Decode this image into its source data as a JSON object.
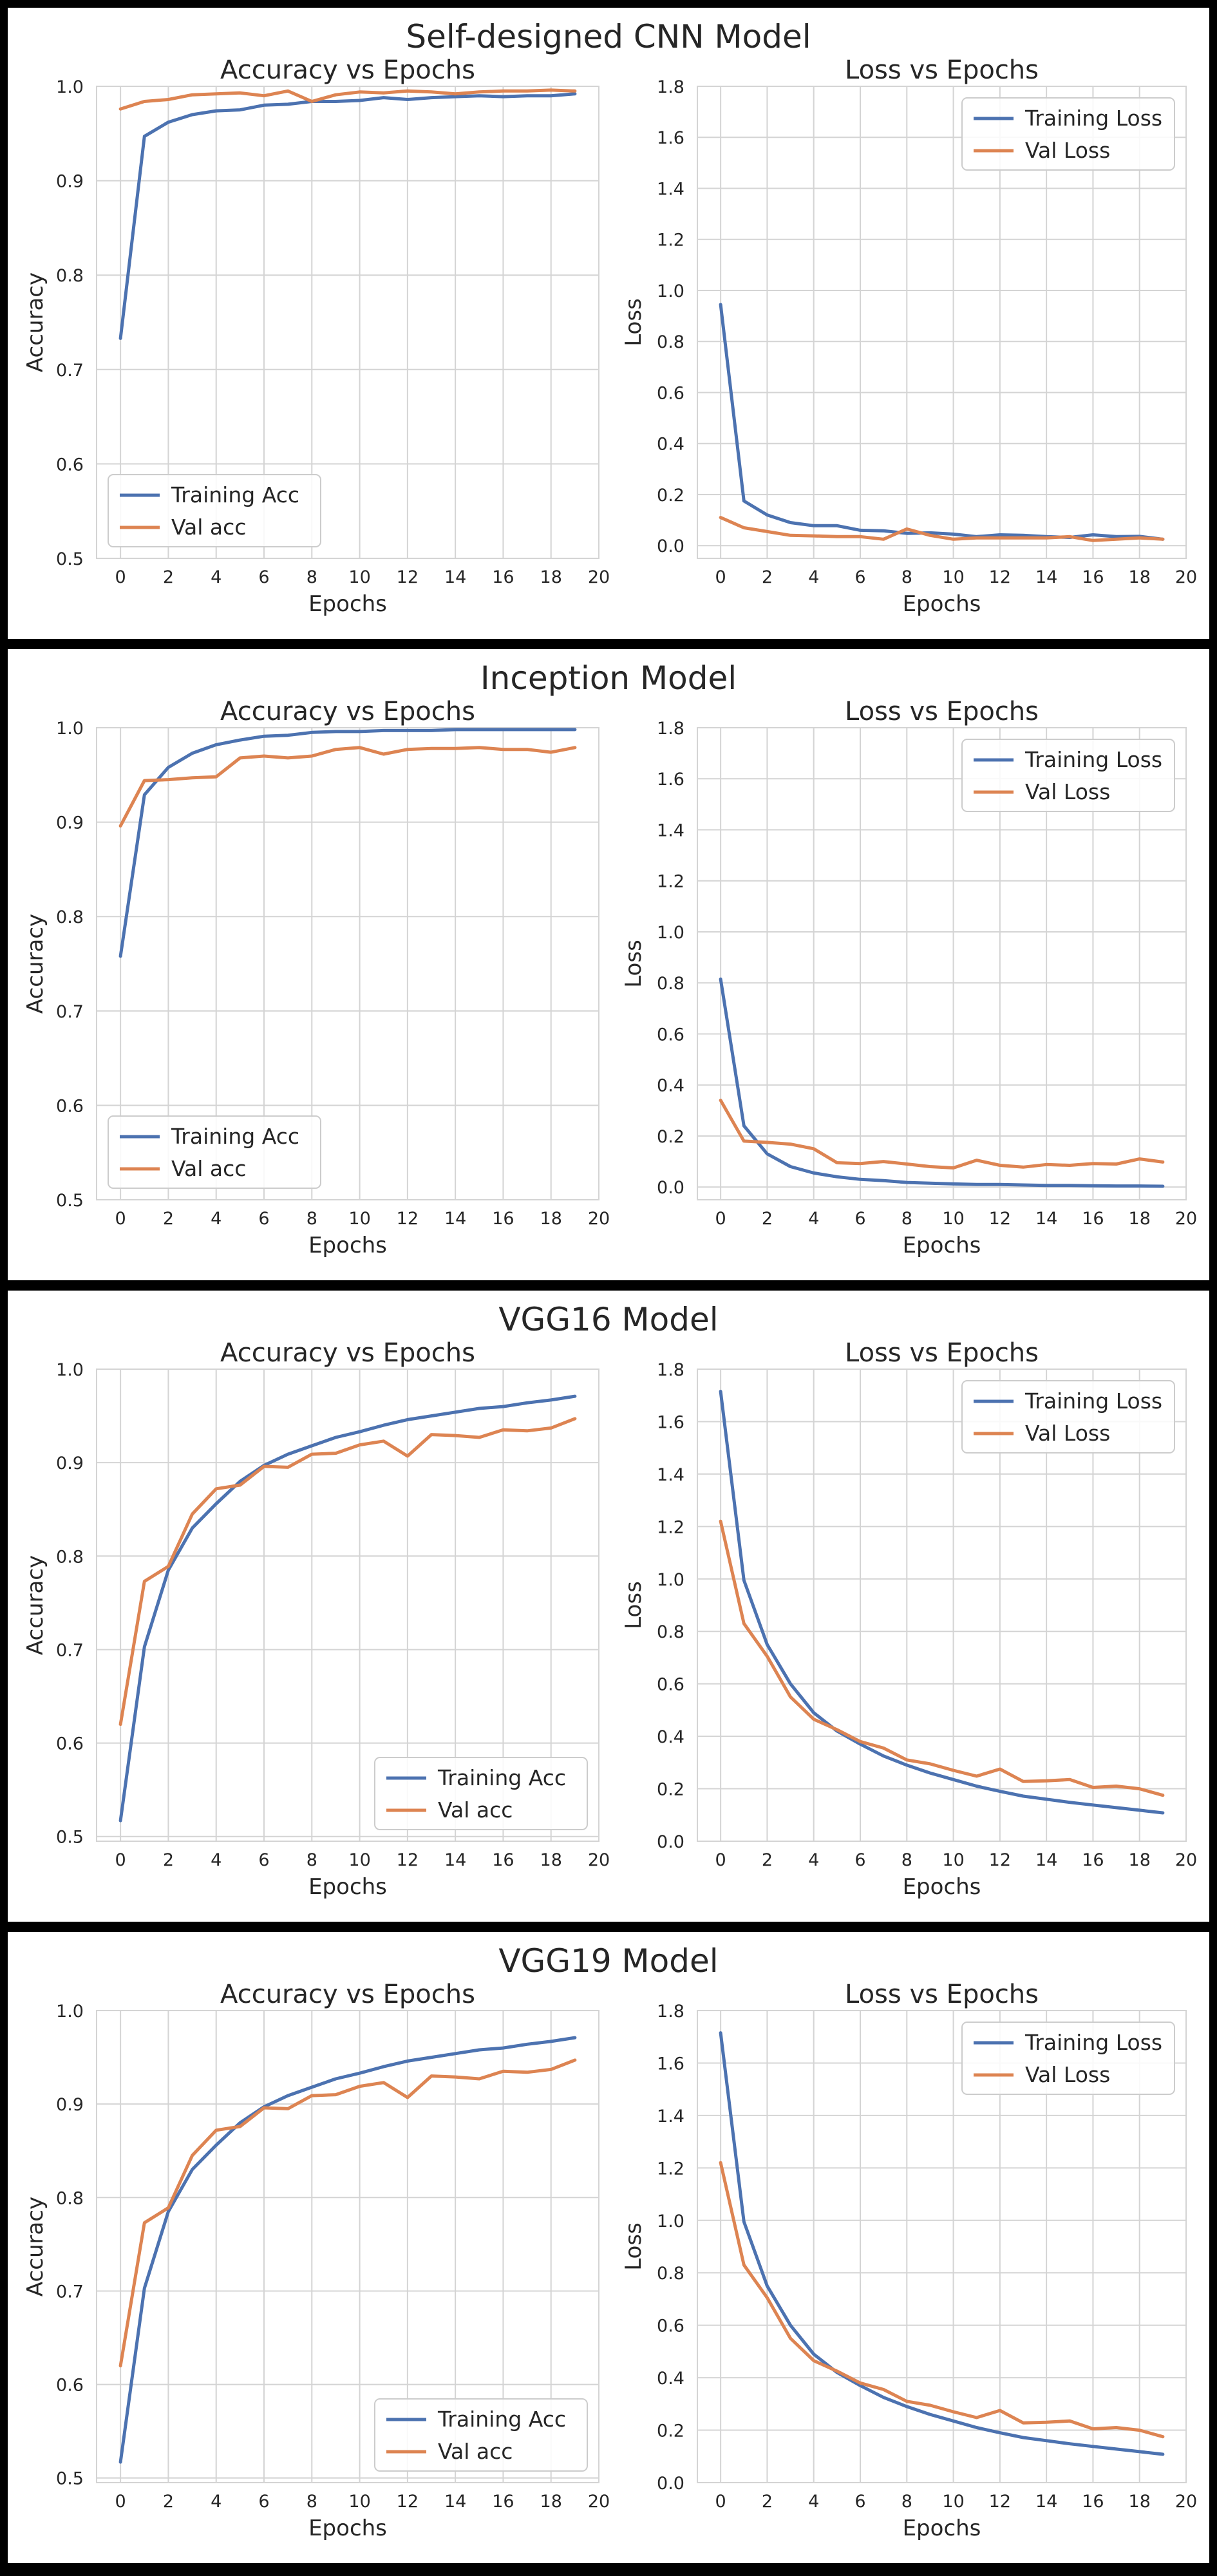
{
  "colors": {
    "training": "#4c72b0",
    "validation": "#dd8452",
    "grid": "#d4d4d4",
    "plot_bg": "#ffffff",
    "frame": "#000000"
  },
  "panels": [
    {
      "title": "Self-designed CNN Model",
      "accuracy_chart_title": "Accuracy vs Epochs",
      "loss_chart_title": "Loss vs Epochs"
    },
    {
      "title": "Inception Model",
      "accuracy_chart_title": "Accuracy vs Epochs",
      "loss_chart_title": "Loss vs Epochs"
    },
    {
      "title": "VGG16 Model",
      "accuracy_chart_title": "Accuracy vs Epochs",
      "loss_chart_title": "Loss vs Epochs"
    },
    {
      "title": "VGG19 Model",
      "accuracy_chart_title": "Accuracy vs Epochs",
      "loss_chart_title": "Loss vs Epochs"
    }
  ],
  "chart_data": [
    {
      "type": "line",
      "title": "Accuracy vs Epochs",
      "xlabel": "Epochs",
      "ylabel": "Accuracy",
      "xlim": [
        -1,
        20
      ],
      "ylim": [
        0.5,
        1.0
      ],
      "xticks": [
        0,
        2,
        4,
        6,
        8,
        10,
        12,
        14,
        16,
        18,
        20
      ],
      "yticks": [
        0.5,
        0.6,
        0.7,
        0.8,
        0.9,
        1.0
      ],
      "legend": "bottom-left",
      "x": [
        0,
        1,
        2,
        3,
        4,
        5,
        6,
        7,
        8,
        9,
        10,
        11,
        12,
        13,
        14,
        15,
        16,
        17,
        18,
        19
      ],
      "series": [
        {
          "name": "Training Acc",
          "values": [
            0.733,
            0.947,
            0.962,
            0.97,
            0.974,
            0.975,
            0.98,
            0.981,
            0.984,
            0.984,
            0.985,
            0.988,
            0.986,
            0.988,
            0.989,
            0.99,
            0.989,
            0.99,
            0.99,
            0.992
          ]
        },
        {
          "name": "Val acc",
          "values": [
            0.976,
            0.984,
            0.986,
            0.991,
            0.992,
            0.993,
            0.99,
            0.995,
            0.984,
            0.991,
            0.994,
            0.993,
            0.995,
            0.994,
            0.992,
            0.994,
            0.995,
            0.995,
            0.996,
            0.995
          ]
        }
      ]
    },
    {
      "type": "line",
      "title": "Loss vs Epochs",
      "xlabel": "Epochs",
      "ylabel": "Loss",
      "xlim": [
        -1,
        20
      ],
      "ylim": [
        -0.05,
        1.8
      ],
      "xticks": [
        0,
        2,
        4,
        6,
        8,
        10,
        12,
        14,
        16,
        18,
        20
      ],
      "yticks": [
        0.0,
        0.2,
        0.4,
        0.6,
        0.8,
        1.0,
        1.2,
        1.4,
        1.6,
        1.8
      ],
      "legend": "top-right",
      "x": [
        0,
        1,
        2,
        3,
        4,
        5,
        6,
        7,
        8,
        9,
        10,
        11,
        12,
        13,
        14,
        15,
        16,
        17,
        18,
        19
      ],
      "series": [
        {
          "name": "Training Loss",
          "values": [
            0.945,
            0.175,
            0.12,
            0.09,
            0.078,
            0.078,
            0.06,
            0.058,
            0.048,
            0.05,
            0.045,
            0.035,
            0.042,
            0.04,
            0.035,
            0.032,
            0.042,
            0.035,
            0.036,
            0.025
          ]
        },
        {
          "name": "Val Loss",
          "values": [
            0.11,
            0.07,
            0.055,
            0.04,
            0.038,
            0.035,
            0.035,
            0.025,
            0.065,
            0.04,
            0.025,
            0.03,
            0.03,
            0.03,
            0.03,
            0.035,
            0.02,
            0.025,
            0.03,
            0.025
          ]
        }
      ]
    },
    {
      "type": "line",
      "title": "Accuracy vs Epochs",
      "xlabel": "Epochs",
      "ylabel": "Accuracy",
      "xlim": [
        -1,
        20
      ],
      "ylim": [
        0.5,
        1.0
      ],
      "xticks": [
        0,
        2,
        4,
        6,
        8,
        10,
        12,
        14,
        16,
        18,
        20
      ],
      "yticks": [
        0.5,
        0.6,
        0.7,
        0.8,
        0.9,
        1.0
      ],
      "legend": "bottom-left",
      "x": [
        0,
        1,
        2,
        3,
        4,
        5,
        6,
        7,
        8,
        9,
        10,
        11,
        12,
        13,
        14,
        15,
        16,
        17,
        18,
        19
      ],
      "series": [
        {
          "name": "Training Acc",
          "values": [
            0.758,
            0.929,
            0.958,
            0.973,
            0.982,
            0.987,
            0.991,
            0.992,
            0.995,
            0.996,
            0.996,
            0.997,
            0.997,
            0.997,
            0.998,
            0.998,
            0.998,
            0.998,
            0.998,
            0.998
          ]
        },
        {
          "name": "Val acc",
          "values": [
            0.896,
            0.944,
            0.945,
            0.947,
            0.948,
            0.968,
            0.97,
            0.968,
            0.97,
            0.977,
            0.979,
            0.972,
            0.977,
            0.978,
            0.978,
            0.979,
            0.977,
            0.977,
            0.974,
            0.979
          ]
        }
      ]
    },
    {
      "type": "line",
      "title": "Loss vs Epochs",
      "xlabel": "Epochs",
      "ylabel": "Loss",
      "xlim": [
        -1,
        20
      ],
      "ylim": [
        -0.05,
        1.8
      ],
      "xticks": [
        0,
        2,
        4,
        6,
        8,
        10,
        12,
        14,
        16,
        18,
        20
      ],
      "yticks": [
        0.0,
        0.2,
        0.4,
        0.6,
        0.8,
        1.0,
        1.2,
        1.4,
        1.6,
        1.8
      ],
      "legend": "top-right",
      "x": [
        0,
        1,
        2,
        3,
        4,
        5,
        6,
        7,
        8,
        9,
        10,
        11,
        12,
        13,
        14,
        15,
        16,
        17,
        18,
        19
      ],
      "series": [
        {
          "name": "Training Loss",
          "values": [
            0.815,
            0.24,
            0.13,
            0.08,
            0.055,
            0.04,
            0.03,
            0.025,
            0.018,
            0.015,
            0.012,
            0.01,
            0.01,
            0.008,
            0.006,
            0.006,
            0.005,
            0.004,
            0.004,
            0.003
          ]
        },
        {
          "name": "Val Loss",
          "values": [
            0.34,
            0.18,
            0.175,
            0.168,
            0.15,
            0.095,
            0.092,
            0.1,
            0.09,
            0.08,
            0.075,
            0.105,
            0.085,
            0.078,
            0.088,
            0.085,
            0.092,
            0.09,
            0.11,
            0.098
          ]
        }
      ]
    },
    {
      "type": "line",
      "title": "Accuracy vs Epochs",
      "xlabel": "Epochs",
      "ylabel": "Accuracy",
      "xlim": [
        -1,
        20
      ],
      "ylim": [
        0.495,
        1.0
      ],
      "xticks": [
        0,
        2,
        4,
        6,
        8,
        10,
        12,
        14,
        16,
        18,
        20
      ],
      "yticks": [
        0.5,
        0.6,
        0.7,
        0.8,
        0.9,
        1.0
      ],
      "legend": "bottom-right",
      "x": [
        0,
        1,
        2,
        3,
        4,
        5,
        6,
        7,
        8,
        9,
        10,
        11,
        12,
        13,
        14,
        15,
        16,
        17,
        18,
        19
      ],
      "series": [
        {
          "name": "Training Acc",
          "values": [
            0.517,
            0.703,
            0.785,
            0.83,
            0.856,
            0.88,
            0.897,
            0.909,
            0.918,
            0.927,
            0.933,
            0.94,
            0.946,
            0.95,
            0.954,
            0.958,
            0.96,
            0.964,
            0.967,
            0.971
          ]
        },
        {
          "name": "Val acc",
          "values": [
            0.62,
            0.773,
            0.789,
            0.845,
            0.872,
            0.876,
            0.896,
            0.895,
            0.909,
            0.91,
            0.919,
            0.923,
            0.907,
            0.93,
            0.929,
            0.927,
            0.935,
            0.934,
            0.937,
            0.947
          ]
        }
      ]
    },
    {
      "type": "line",
      "title": "Loss vs Epochs",
      "xlabel": "Epochs",
      "ylabel": "Loss",
      "xlim": [
        -1,
        20
      ],
      "ylim": [
        0.0,
        1.8
      ],
      "xticks": [
        0,
        2,
        4,
        6,
        8,
        10,
        12,
        14,
        16,
        18,
        20
      ],
      "yticks": [
        0.0,
        0.2,
        0.4,
        0.6,
        0.8,
        1.0,
        1.2,
        1.4,
        1.6,
        1.8
      ],
      "legend": "top-right",
      "x": [
        0,
        1,
        2,
        3,
        4,
        5,
        6,
        7,
        8,
        9,
        10,
        11,
        12,
        13,
        14,
        15,
        16,
        17,
        18,
        19
      ],
      "series": [
        {
          "name": "Training Loss",
          "values": [
            1.715,
            0.995,
            0.75,
            0.6,
            0.49,
            0.42,
            0.37,
            0.325,
            0.29,
            0.26,
            0.235,
            0.21,
            0.19,
            0.172,
            0.16,
            0.148,
            0.138,
            0.128,
            0.118,
            0.108
          ]
        },
        {
          "name": "Val Loss",
          "values": [
            1.22,
            0.83,
            0.705,
            0.55,
            0.465,
            0.425,
            0.38,
            0.355,
            0.31,
            0.295,
            0.27,
            0.248,
            0.275,
            0.228,
            0.23,
            0.235,
            0.205,
            0.21,
            0.2,
            0.175
          ]
        }
      ]
    },
    {
      "type": "line",
      "title": "Accuracy vs Epochs",
      "xlabel": "Epochs",
      "ylabel": "Accuracy",
      "xlim": [
        -1,
        20
      ],
      "ylim": [
        0.495,
        1.0
      ],
      "xticks": [
        0,
        2,
        4,
        6,
        8,
        10,
        12,
        14,
        16,
        18,
        20
      ],
      "yticks": [
        0.5,
        0.6,
        0.7,
        0.8,
        0.9,
        1.0
      ],
      "legend": "bottom-right",
      "x": [
        0,
        1,
        2,
        3,
        4,
        5,
        6,
        7,
        8,
        9,
        10,
        11,
        12,
        13,
        14,
        15,
        16,
        17,
        18,
        19
      ],
      "series": [
        {
          "name": "Training Acc",
          "values": [
            0.517,
            0.703,
            0.785,
            0.83,
            0.856,
            0.88,
            0.897,
            0.909,
            0.918,
            0.927,
            0.933,
            0.94,
            0.946,
            0.95,
            0.954,
            0.958,
            0.96,
            0.964,
            0.967,
            0.971
          ]
        },
        {
          "name": "Val acc",
          "values": [
            0.62,
            0.773,
            0.789,
            0.845,
            0.872,
            0.876,
            0.896,
            0.895,
            0.909,
            0.91,
            0.919,
            0.923,
            0.907,
            0.93,
            0.929,
            0.927,
            0.935,
            0.934,
            0.937,
            0.947
          ]
        }
      ]
    },
    {
      "type": "line",
      "title": "Loss vs Epochs",
      "xlabel": "Epochs",
      "ylabel": "Loss",
      "xlim": [
        -1,
        20
      ],
      "ylim": [
        0.0,
        1.8
      ],
      "xticks": [
        0,
        2,
        4,
        6,
        8,
        10,
        12,
        14,
        16,
        18,
        20
      ],
      "yticks": [
        0.0,
        0.2,
        0.4,
        0.6,
        0.8,
        1.0,
        1.2,
        1.4,
        1.6,
        1.8
      ],
      "legend": "top-right",
      "x": [
        0,
        1,
        2,
        3,
        4,
        5,
        6,
        7,
        8,
        9,
        10,
        11,
        12,
        13,
        14,
        15,
        16,
        17,
        18,
        19
      ],
      "series": [
        {
          "name": "Training Loss",
          "values": [
            1.715,
            0.995,
            0.75,
            0.6,
            0.49,
            0.42,
            0.37,
            0.325,
            0.29,
            0.26,
            0.235,
            0.21,
            0.19,
            0.172,
            0.16,
            0.148,
            0.138,
            0.128,
            0.118,
            0.108
          ]
        },
        {
          "name": "Val Loss",
          "values": [
            1.22,
            0.83,
            0.705,
            0.55,
            0.465,
            0.425,
            0.38,
            0.355,
            0.31,
            0.295,
            0.27,
            0.248,
            0.275,
            0.228,
            0.23,
            0.235,
            0.205,
            0.21,
            0.2,
            0.175
          ]
        }
      ]
    }
  ]
}
